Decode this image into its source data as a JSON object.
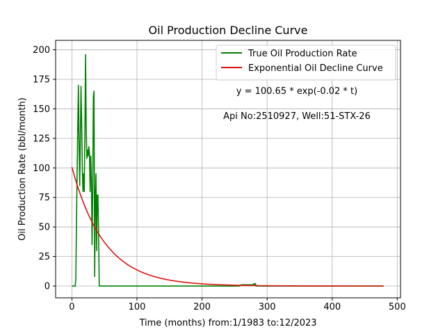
{
  "chart_data": {
    "type": "line",
    "title": "Oil Production Decline Curve",
    "xlabel": "Time (months) from:1/1983 to:12/2023",
    "ylabel": "Oil Production Rate (bbl/month)",
    "xlim": [
      -25,
      505
    ],
    "ylim": [
      -10,
      208
    ],
    "xticks": [
      0,
      100,
      200,
      300,
      400,
      500
    ],
    "yticks": [
      0,
      25,
      50,
      75,
      100,
      125,
      150,
      175,
      200
    ],
    "grid": true,
    "legend_position": "top-right",
    "annotations": [
      "y = 100.65 * exp(-0.02 * t)",
      "Api No:2510927, Well:51-STX-26"
    ],
    "series": [
      {
        "name": "True Oil Production Rate",
        "color": "#008000",
        "x": [
          0,
          5,
          6,
          8,
          10,
          11,
          12,
          13,
          14,
          15,
          16,
          17,
          18,
          19,
          20,
          21,
          22,
          23,
          24,
          25,
          26,
          27,
          28,
          29,
          30,
          31,
          32,
          33,
          34,
          35,
          36,
          37,
          38,
          39,
          40,
          41,
          42,
          43,
          44,
          45,
          46,
          47,
          48,
          50,
          51,
          52,
          53,
          100,
          200,
          258,
          260,
          270,
          278,
          280,
          281,
          282,
          283,
          284,
          285,
          300,
          400,
          479
        ],
        "y": [
          0,
          0,
          5,
          95,
          170,
          120,
          85,
          125,
          169,
          140,
          100,
          80,
          95,
          80,
          130,
          196,
          135,
          108,
          115,
          110,
          118,
          112,
          80,
          110,
          90,
          35,
          80,
          160,
          165,
          8,
          75,
          95,
          30,
          77,
          77,
          45,
          0,
          0,
          0,
          0,
          0,
          0,
          0,
          0,
          0,
          0,
          0,
          0,
          0,
          0,
          1,
          1,
          1,
          2,
          1,
          2,
          0,
          0,
          0,
          0,
          0,
          0
        ]
      },
      {
        "name": "Exponential Oil Decline Curve",
        "color": "#dd1111",
        "formula": {
          "a": 100.65,
          "b": 0.02
        },
        "x_range": [
          0,
          479
        ]
      }
    ]
  }
}
